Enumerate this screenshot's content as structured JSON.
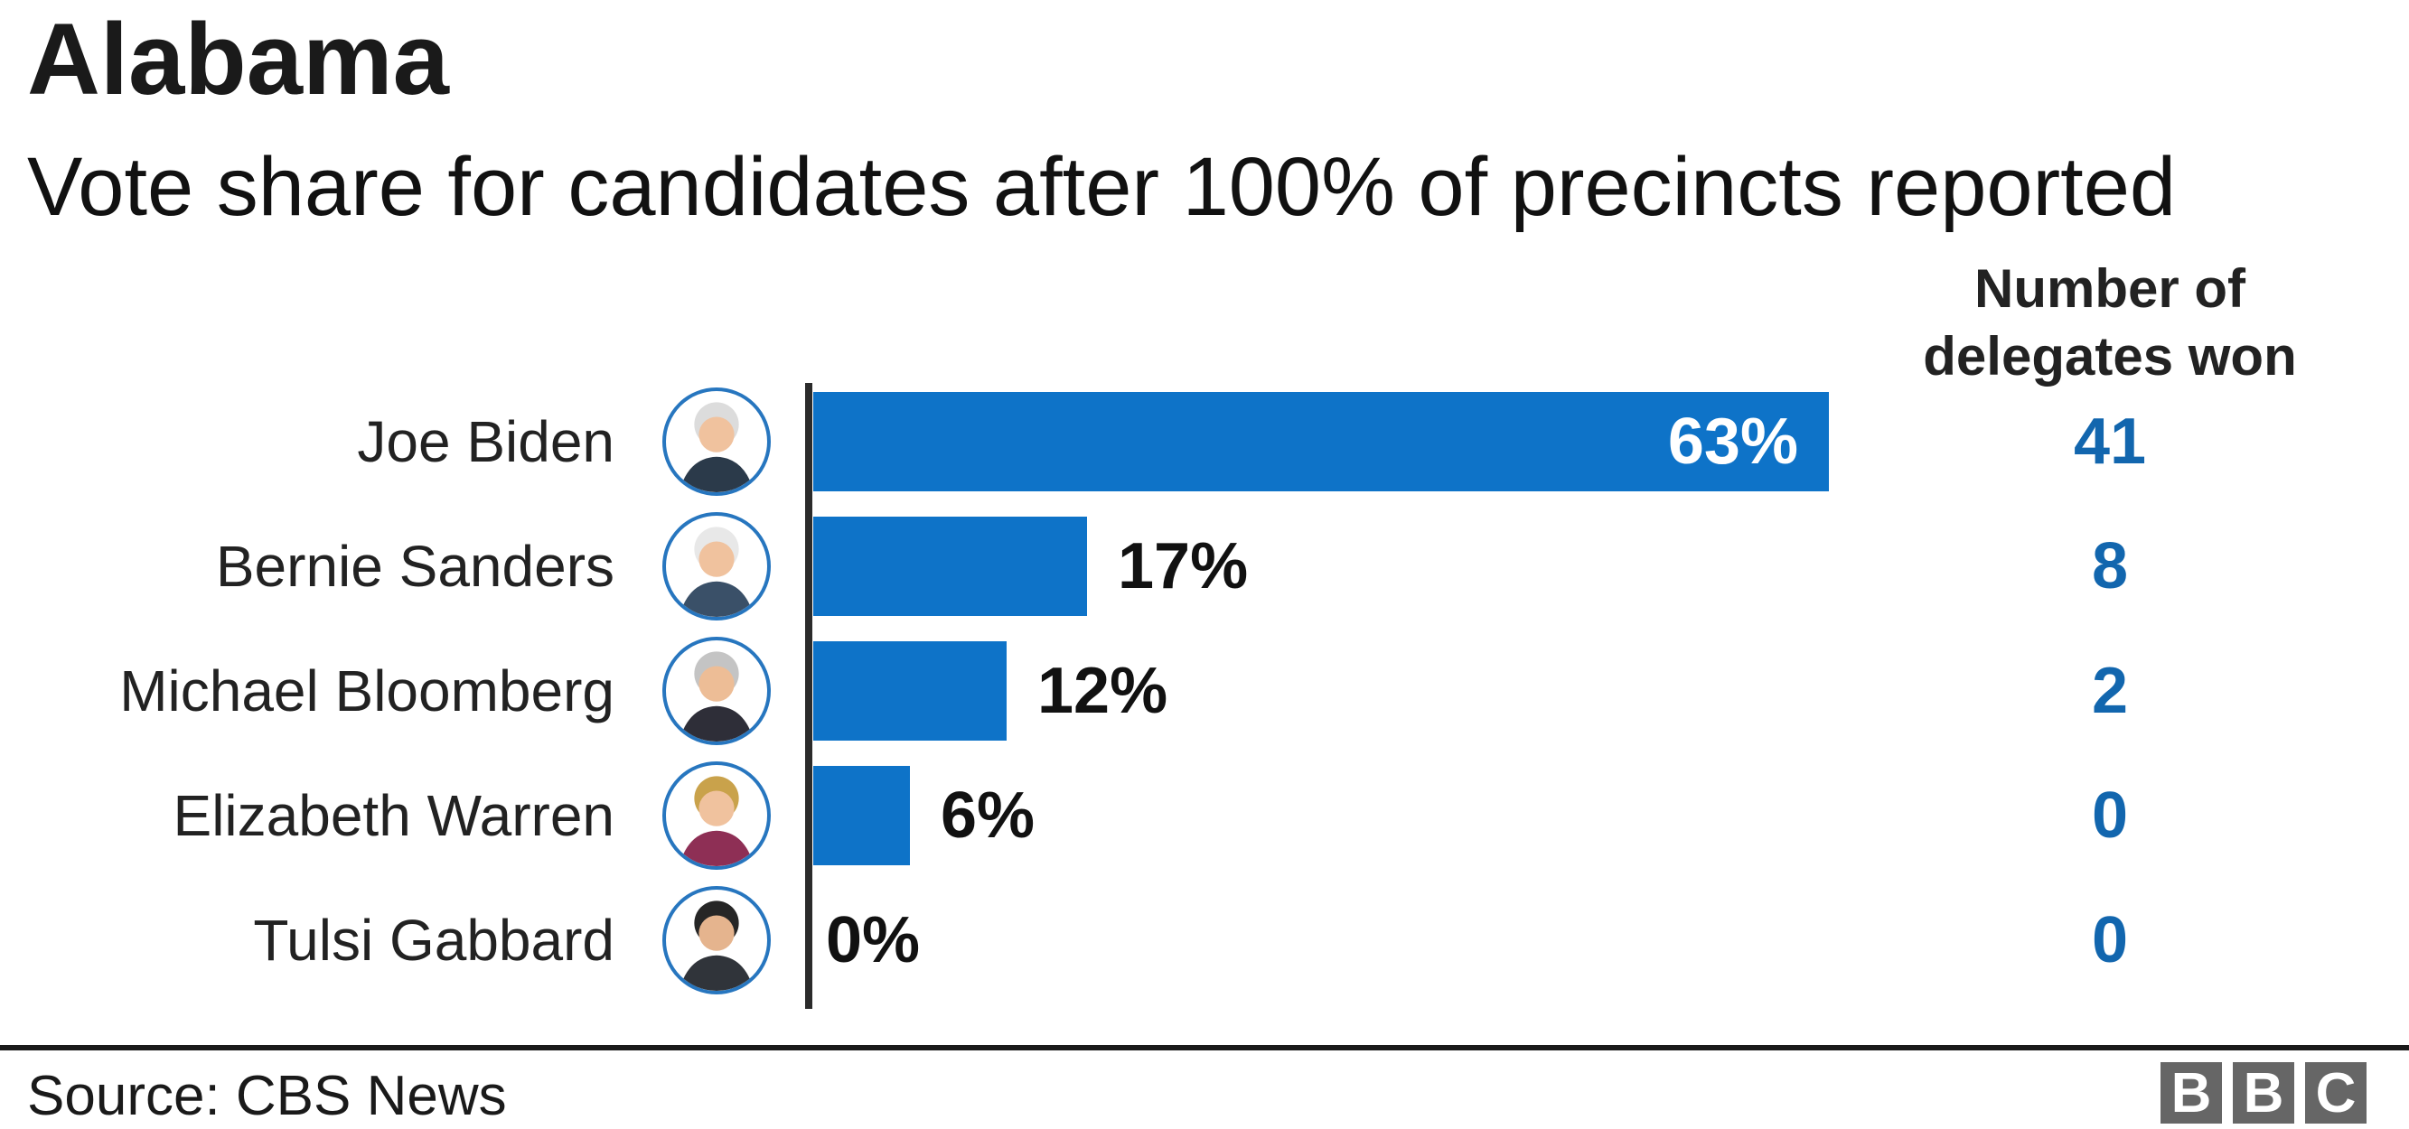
{
  "chart_data": {
    "type": "bar",
    "orientation": "horizontal",
    "title": "Alabama",
    "subtitle": "Vote share for candidates after 100% of precincts reported",
    "categories": [
      "Joe Biden",
      "Bernie Sanders",
      "Michael Bloomberg",
      "Elizabeth Warren",
      "Tulsi Gabbard"
    ],
    "values": [
      63,
      17,
      12,
      6,
      0
    ],
    "labels": [
      "63%",
      "17%",
      "12%",
      "6%",
      "0%"
    ],
    "delegates": [
      41,
      8,
      2,
      0,
      0
    ],
    "delegates_header": {
      "line1": "Number of",
      "line2": "delegates won"
    },
    "unit": "%",
    "xlim": [
      0,
      63
    ],
    "grid": "off",
    "legend": "none",
    "avatars": [
      {
        "hair": "#dcdcdc",
        "skin": "#f0c29e",
        "suit": "#2b3a4a"
      },
      {
        "hair": "#e8e8e8",
        "skin": "#f0c29e",
        "suit": "#3a5068"
      },
      {
        "hair": "#c4c4c4",
        "skin": "#edbd96",
        "suit": "#2e2e38"
      },
      {
        "hair": "#c9a24b",
        "skin": "#f0c29e",
        "suit": "#8e2f55"
      },
      {
        "hair": "#262626",
        "skin": "#e5b48e",
        "suit": "#30343a"
      }
    ]
  },
  "footer": {
    "source": "Source: CBS News",
    "logo_letters": [
      "B",
      "B",
      "C"
    ]
  },
  "colors": {
    "bar": "#0e73c8",
    "num": "#1266ae",
    "axis": "#2b2b2b",
    "ring": "#2776bf",
    "logo": "#666666",
    "divider": "#1a1a1a"
  }
}
